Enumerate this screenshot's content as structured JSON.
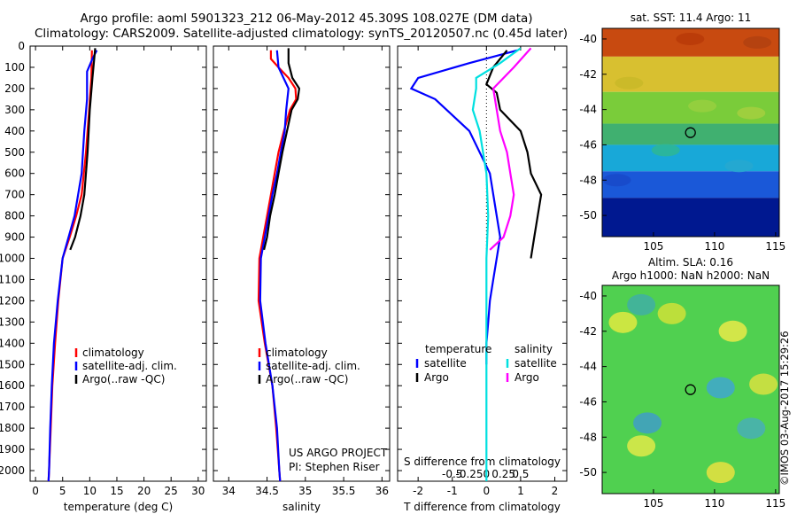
{
  "header": {
    "title_line1": "Argo profile: aoml 5901323_212 06-May-2012 45.309S 108.027E (DM data)",
    "title_line2": "Climatology: CARS2009. Satellite-adjusted climatology: synTS_20120507.nc (0.45d later)"
  },
  "colors": {
    "climatology": "#ff0000",
    "satellite": "#0000ff",
    "argo": "#000000",
    "cyan": "#00e0e0",
    "magenta": "#ff00ff"
  },
  "depth_axis": {
    "ticks": [
      0,
      100,
      200,
      300,
      400,
      500,
      600,
      700,
      800,
      900,
      1000,
      1100,
      1200,
      1300,
      1400,
      1500,
      1600,
      1700,
      1800,
      1900,
      2000
    ],
    "range": [
      0,
      2050
    ]
  },
  "chart_data": [
    {
      "type": "line",
      "id": "temperature",
      "xlabel": "temperature (deg C)",
      "xlim": [
        -1,
        31.5
      ],
      "xticks": [
        0,
        5,
        10,
        15,
        20,
        25,
        30
      ],
      "ylim": [
        2050,
        0
      ],
      "legend": {
        "placement": "middle-center",
        "entries": [
          "climatology",
          "satellite-adj. clim.",
          "Argo(..raw -QC)"
        ]
      },
      "series": [
        {
          "name": "climatology",
          "color": "#ff0000",
          "depth": [
            20,
            150,
            300,
            500,
            700,
            800,
            900,
            1000,
            1200,
            1400,
            1600,
            1800,
            2000,
            2050
          ],
          "values": [
            10.4,
            10.3,
            9.9,
            9.3,
            8.5,
            7.5,
            6.3,
            5.0,
            4.2,
            3.6,
            3.1,
            2.8,
            2.5,
            2.4
          ]
        },
        {
          "name": "satellite-adj. clim.",
          "color": "#0000ff",
          "depth": [
            20,
            60,
            120,
            250,
            400,
            600,
            800,
            1000,
            1200,
            1400,
            1600,
            1800,
            2000,
            2050
          ],
          "values": [
            11.3,
            10.5,
            9.5,
            9.5,
            9.0,
            8.5,
            7.2,
            5.0,
            4.1,
            3.4,
            3.0,
            2.7,
            2.5,
            2.4
          ]
        },
        {
          "name": "Argo(..raw -QC)",
          "color": "#000000",
          "depth": [
            10,
            150,
            300,
            500,
            700,
            800,
            900,
            960
          ],
          "values": [
            11.0,
            10.5,
            10.0,
            9.6,
            9.0,
            8.3,
            7.3,
            6.4
          ]
        }
      ]
    },
    {
      "type": "line",
      "id": "salinity",
      "xlabel": "salinity",
      "xlim": [
        33.8,
        36.1
      ],
      "xticks": [
        34,
        34.5,
        35,
        35.5,
        36
      ],
      "ylim": [
        2050,
        0
      ],
      "legend": {
        "placement": "middle-center",
        "entries": [
          "climatology",
          "satellite-adj. clim.",
          "Argo(..raw -QC)"
        ]
      },
      "annotation": [
        "US ARGO PROJECT",
        "PI: Stephen Riser"
      ],
      "series": [
        {
          "name": "climatology",
          "color": "#ff0000",
          "depth": [
            20,
            60,
            100,
            150,
            200,
            250,
            300,
            400,
            500,
            600,
            700,
            800,
            900,
            1000,
            1200,
            1400,
            1600,
            1800,
            2000,
            2050
          ],
          "values": [
            34.55,
            34.55,
            34.65,
            34.78,
            34.87,
            34.88,
            34.8,
            34.72,
            34.65,
            34.6,
            34.55,
            34.5,
            34.45,
            34.4,
            34.39,
            34.47,
            34.57,
            34.62,
            34.66,
            34.67
          ]
        },
        {
          "name": "satellite-adj. clim.",
          "color": "#0000ff",
          "depth": [
            20,
            100,
            200,
            300,
            400,
            500,
            600,
            700,
            800,
            900,
            1000,
            1200,
            1400,
            1600,
            1800,
            2000,
            2050
          ],
          "values": [
            34.63,
            34.65,
            34.78,
            34.75,
            34.73,
            34.68,
            34.63,
            34.57,
            34.52,
            34.47,
            34.42,
            34.41,
            34.48,
            34.57,
            34.63,
            34.66,
            34.67
          ]
        },
        {
          "name": "Argo(..raw -QC)",
          "color": "#000000",
          "depth": [
            10,
            80,
            150,
            200,
            250,
            300,
            400,
            500,
            600,
            700,
            800,
            900,
            960
          ],
          "values": [
            34.78,
            34.78,
            34.83,
            34.92,
            34.9,
            34.82,
            34.76,
            34.7,
            34.65,
            34.6,
            34.54,
            34.5,
            34.46
          ]
        }
      ]
    },
    {
      "type": "line",
      "id": "difference",
      "xlabel": "T difference from climatology",
      "xlabel_top": "S difference from climatology",
      "xlim": [
        -2.6,
        2.35
      ],
      "xticks_T": [
        -2,
        -1,
        0,
        1,
        2
      ],
      "xticks_S_values": [
        -0.5,
        -0.25,
        0,
        0.25,
        0.5
      ],
      "xticks_S_labels": [
        "-0.5",
        "-0.25",
        "0",
        "0.25",
        "0.5"
      ],
      "ylim": [
        2050,
        0
      ],
      "legend": {
        "placement": "middle-center",
        "groups": [
          "temperature",
          "salinity"
        ],
        "entries": [
          "satellite",
          "Argo",
          "satellite",
          "Argo"
        ]
      },
      "series": [
        {
          "name": "temperature satellite",
          "color": "#0000ff",
          "depth": [
            20,
            80,
            150,
            200,
            250,
            400,
            600,
            800,
            900,
            1000,
            1100,
            1200,
            1300,
            1400,
            1500
          ],
          "values": [
            0.9,
            -0.5,
            -2.0,
            -2.2,
            -1.5,
            -0.5,
            0.1,
            0.3,
            0.4,
            0.3,
            0.2,
            0.1,
            0.05,
            0.0,
            0.0
          ]
        },
        {
          "name": "temperature Argo",
          "color": "#000000",
          "depth": [
            20,
            100,
            180,
            220,
            300,
            400,
            500,
            600,
            700,
            800,
            900,
            1000
          ],
          "values": [
            0.6,
            0.2,
            0.0,
            0.3,
            0.4,
            1.0,
            1.2,
            1.3,
            1.6,
            1.5,
            1.4,
            1.3
          ]
        },
        {
          "name": "salinity satellite",
          "color": "#00e0e0",
          "depth": [
            10,
            80,
            150,
            200,
            300,
            400,
            600,
            800,
            1000,
            1200,
            1400,
            1800,
            2050
          ],
          "values": [
            1.0,
            0.4,
            -0.3,
            -0.3,
            -0.4,
            -0.2,
            0.0,
            0.05,
            0.0,
            0.0,
            0.0,
            0.0,
            0.0
          ]
        },
        {
          "name": "salinity Argo",
          "color": "#ff00ff",
          "depth": [
            10,
            100,
            200,
            300,
            400,
            500,
            600,
            700,
            800,
            900,
            960
          ],
          "values": [
            1.3,
            0.8,
            0.2,
            0.3,
            0.4,
            0.6,
            0.7,
            0.8,
            0.7,
            0.5,
            0.1
          ]
        }
      ]
    },
    {
      "type": "heatmap",
      "id": "sst_map",
      "title": "sat. SST: 11.4  Argo: 11",
      "xlim": [
        100.8,
        115.3
      ],
      "ylim": [
        -51.2,
        -39.4
      ],
      "xticks": [
        105,
        110,
        115
      ],
      "yticks": [
        -40,
        -42,
        -44,
        -46,
        -48,
        -50
      ],
      "marker": {
        "lon": 108.027,
        "lat": -45.309
      },
      "bands": [
        {
          "lat": [
            -39.4,
            -41.0
          ],
          "color": "#c84a10"
        },
        {
          "lat": [
            -41.0,
            -43.0
          ],
          "color": "#d8c030"
        },
        {
          "lat": [
            -43.0,
            -44.8
          ],
          "color": "#7acc3a"
        },
        {
          "lat": [
            -44.8,
            -46.0
          ],
          "color": "#40b070"
        },
        {
          "lat": [
            -46.0,
            -47.5
          ],
          "color": "#18a8d8"
        },
        {
          "lat": [
            -47.5,
            -49.0
          ],
          "color": "#1a58d8"
        },
        {
          "lat": [
            -49.0,
            -51.2
          ],
          "color": "#001890"
        }
      ]
    },
    {
      "type": "heatmap",
      "id": "sla_map",
      "title": "Altim. SLA: 0.16",
      "subtitle": "Argo h1000: NaN  h2000: NaN",
      "xlim": [
        100.8,
        115.3
      ],
      "ylim": [
        -51.2,
        -39.4
      ],
      "xticks": [
        105,
        110,
        115
      ],
      "yticks": [
        -40,
        -42,
        -44,
        -46,
        -48,
        -50
      ],
      "marker": {
        "lon": 108.027,
        "lat": -45.309
      },
      "base_color": "#50d050",
      "blobs": [
        {
          "lon": 102.5,
          "lat": -41.5,
          "color": "#d8e840"
        },
        {
          "lon": 106.5,
          "lat": -41.0,
          "color": "#c8e038"
        },
        {
          "lon": 111.5,
          "lat": -42.0,
          "color": "#e0e848"
        },
        {
          "lon": 114.0,
          "lat": -45.0,
          "color": "#d0e040"
        },
        {
          "lon": 104.0,
          "lat": -48.5,
          "color": "#d8e848"
        },
        {
          "lon": 110.5,
          "lat": -50.0,
          "color": "#e0e040"
        },
        {
          "lon": 110.5,
          "lat": -45.2,
          "color": "#40a8c8"
        },
        {
          "lon": 104.5,
          "lat": -47.2,
          "color": "#40a0c0"
        },
        {
          "lon": 113.0,
          "lat": -47.5,
          "color": "#48b0b0"
        },
        {
          "lon": 104.0,
          "lat": -40.5,
          "color": "#40b0a0"
        }
      ]
    }
  ],
  "watermark": "©IMOS 03-Aug-2017 15:29:26"
}
